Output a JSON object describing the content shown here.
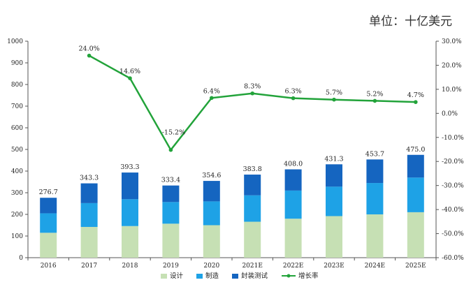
{
  "unit_label": "单位：十亿美元",
  "chart_data": {
    "type": "bar",
    "stacked": true,
    "categories": [
      "2016",
      "2017",
      "2018",
      "2019",
      "2020",
      "2021E",
      "2022E",
      "2023E",
      "2024E",
      "2025E"
    ],
    "series": [
      {
        "name": "设计",
        "color": "#c6e0b4",
        "values": [
          115,
          142,
          146,
          157,
          150,
          166,
          180,
          192,
          200,
          210
        ]
      },
      {
        "name": "制造",
        "color": "#1ea2e6",
        "values": [
          90,
          110,
          124,
          100,
          110,
          122,
          130,
          136,
          145,
          160
        ]
      },
      {
        "name": "封装测试",
        "color": "#1565c0",
        "values": [
          71.7,
          91.3,
          123.3,
          76.4,
          94.6,
          95.8,
          98,
          103.3,
          108.7,
          105
        ]
      }
    ],
    "totals": [
      276.7,
      343.3,
      393.3,
      333.4,
      354.6,
      383.8,
      408.0,
      431.3,
      453.7,
      475.0
    ],
    "total_labels": [
      "276.7",
      "343.3",
      "393.3",
      "333.4",
      "354.6",
      "383.8",
      "408.0",
      "431.3",
      "453.7",
      "475.0"
    ],
    "growth": {
      "name": "增长率",
      "color": "#22a33a",
      "categories": [
        "2017",
        "2018",
        "2019",
        "2020",
        "2021E",
        "2022E",
        "2023E",
        "2024E",
        "2025E"
      ],
      "values": [
        24.0,
        14.6,
        -15.2,
        6.4,
        8.3,
        6.3,
        5.7,
        5.2,
        4.7
      ],
      "labels": [
        "24.0%",
        "14.6%",
        "-15.2%",
        "6.4%",
        "8.3%",
        "6.3%",
        "5.7%",
        "5.2%",
        "4.7%"
      ]
    },
    "y_left": {
      "ylim": [
        0,
        1000
      ],
      "ticks": [
        "0",
        "100",
        "200",
        "300",
        "400",
        "500",
        "600",
        "700",
        "800",
        "900",
        "1000"
      ]
    },
    "y_right": {
      "ylim": [
        -60,
        30
      ],
      "ticks": [
        "30.0%",
        "20.0%",
        "10.0%",
        "0.0%",
        "-10.0%",
        "-20.0%",
        "-30.0%",
        "-40.0%",
        "-50.0%",
        "-60.0%"
      ]
    },
    "legend_position": "bottom",
    "grid": false
  }
}
